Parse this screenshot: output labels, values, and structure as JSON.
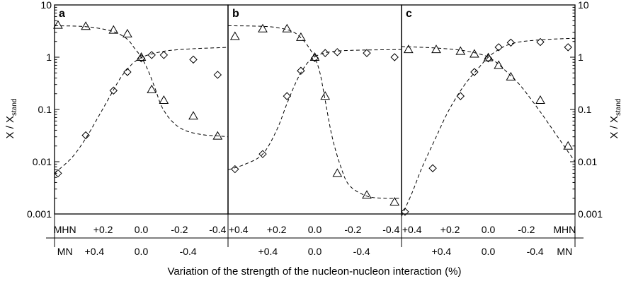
{
  "chart_data": {
    "type": "scatter",
    "y_axis": {
      "title_left": "X / X",
      "title_right": "X / X",
      "title_subscript": "stand",
      "scale": "log",
      "ylim": [
        0.001,
        10
      ],
      "ticks": [
        "0.001",
        "0.01",
        "0.1",
        "1",
        "10"
      ]
    },
    "xlabel": "Variation of the strength of the nucleon-nucleon interaction (%)",
    "panels": [
      {
        "letter": "a",
        "xlim": [
          0.5,
          -0.5
        ],
        "axis_row1": [
          "MHN",
          "+0.2",
          "0.0",
          "-0.2",
          "-0.4"
        ],
        "axis_row2": [
          "MN",
          "+0.4",
          "0.0",
          "-0.4"
        ],
        "series": [
          {
            "marker": "triangle",
            "x": [
              0.48,
              0.32,
              0.16,
              0.08,
              0.0,
              -0.06,
              -0.13,
              -0.3,
              -0.44
            ],
            "y": [
              4.1,
              3.9,
              3.3,
              2.8,
              1.0,
              0.24,
              0.15,
              0.075,
              0.031
            ]
          },
          {
            "marker": "diamond",
            "x": [
              0.48,
              0.32,
              0.16,
              0.08,
              0.0,
              -0.06,
              -0.13,
              -0.3,
              -0.44
            ],
            "y": [
              0.006,
              0.032,
              0.23,
              0.52,
              0.95,
              1.1,
              1.1,
              0.9,
              0.46
            ]
          }
        ],
        "fits": [
          {
            "x": [
              0.5,
              0.35,
              0.25,
              0.15,
              0.08,
              0.04,
              0.0,
              -0.04,
              -0.08,
              -0.12,
              -0.18,
              -0.25,
              -0.35,
              -0.45,
              -0.5
            ],
            "y": [
              4.0,
              3.9,
              3.6,
              3.0,
              2.2,
              1.5,
              1.0,
              0.55,
              0.25,
              0.11,
              0.058,
              0.04,
              0.033,
              0.031,
              0.03
            ]
          },
          {
            "x": [
              0.5,
              0.4,
              0.32,
              0.25,
              0.18,
              0.12,
              0.06,
              0.02,
              -0.02,
              -0.08,
              -0.15,
              -0.25,
              -0.35,
              -0.45,
              -0.5
            ],
            "y": [
              0.006,
              0.012,
              0.028,
              0.07,
              0.18,
              0.4,
              0.7,
              0.9,
              1.05,
              1.2,
              1.33,
              1.42,
              1.48,
              1.52,
              1.55
            ]
          }
        ]
      },
      {
        "letter": "b",
        "xlim": [
          0.5,
          -0.5
        ],
        "axis_row1": [
          "+0.4",
          "+0.2",
          "0.0",
          "-0.2",
          "-0.4"
        ],
        "axis_row2": [
          "+0.4",
          "0.0",
          "-0.4"
        ],
        "series": [
          {
            "marker": "triangle",
            "x": [
              0.46,
              0.3,
              0.16,
              0.08,
              0.0,
              -0.06,
              -0.13,
              -0.3,
              -0.46
            ],
            "y": [
              2.5,
              3.5,
              3.5,
              2.4,
              1.0,
              0.18,
              0.006,
              0.0023,
              0.0017
            ]
          },
          {
            "marker": "diamond",
            "x": [
              0.46,
              0.3,
              0.16,
              0.08,
              0.0,
              -0.06,
              -0.13,
              -0.3,
              -0.46
            ],
            "y": [
              0.0072,
              0.014,
              0.18,
              0.55,
              0.96,
              1.2,
              1.25,
              1.2,
              1.0
            ]
          }
        ],
        "fits": [
          {
            "x": [
              0.5,
              0.3,
              0.2,
              0.12,
              0.06,
              0.02,
              0.0,
              -0.03,
              -0.06,
              -0.1,
              -0.15,
              -0.2,
              -0.3,
              -0.4,
              -0.5
            ],
            "y": [
              4.0,
              3.9,
              3.6,
              3.0,
              2.0,
              1.3,
              1.0,
              0.5,
              0.15,
              0.03,
              0.008,
              0.0035,
              0.0022,
              0.002,
              0.002
            ]
          },
          {
            "x": [
              0.5,
              0.4,
              0.3,
              0.22,
              0.16,
              0.1,
              0.05,
              0.02,
              -0.02,
              -0.08,
              -0.2,
              -0.5
            ],
            "y": [
              0.007,
              0.009,
              0.014,
              0.04,
              0.13,
              0.38,
              0.72,
              0.9,
              1.1,
              1.25,
              1.35,
              1.4
            ]
          }
        ]
      },
      {
        "letter": "c",
        "xlim": [
          0.5,
          -0.5
        ],
        "axis_row1": [
          "+0.4",
          "+0.2",
          "0.0",
          "-0.2",
          "MHN"
        ],
        "axis_row2": [
          "+0.4",
          "0.0",
          "-0.4",
          "MN"
        ],
        "series": [
          {
            "marker": "triangle",
            "x": [
              0.46,
              0.3,
              0.16,
              0.08,
              0.0,
              -0.06,
              -0.13,
              -0.3,
              -0.46
            ],
            "y": [
              1.4,
              1.4,
              1.3,
              1.15,
              0.98,
              0.7,
              0.42,
              0.15,
              0.02
            ]
          },
          {
            "marker": "diamond",
            "x": [
              0.48,
              0.32,
              0.16,
              0.08,
              0.0,
              -0.06,
              -0.13,
              -0.3,
              -0.46
            ],
            "y": [
              0.0011,
              0.0075,
              0.18,
              0.52,
              0.95,
              1.55,
              1.9,
              1.95,
              1.55
            ]
          }
        ],
        "fits": [
          {
            "x": [
              0.5,
              0.3,
              0.15,
              0.05,
              0.0,
              -0.05,
              -0.1,
              -0.15,
              -0.2,
              -0.3,
              -0.4,
              -0.5
            ],
            "y": [
              1.6,
              1.5,
              1.35,
              1.15,
              1.0,
              0.78,
              0.55,
              0.38,
              0.25,
              0.09,
              0.03,
              0.01
            ]
          },
          {
            "x": [
              0.5,
              0.44,
              0.38,
              0.3,
              0.24,
              0.18,
              0.12,
              0.06,
              0.0,
              -0.06,
              -0.12,
              -0.2,
              -0.35,
              -0.5
            ],
            "y": [
              0.0009,
              0.0025,
              0.008,
              0.03,
              0.08,
              0.18,
              0.35,
              0.6,
              1.0,
              1.4,
              1.75,
              2.0,
              2.2,
              2.3
            ]
          }
        ]
      }
    ]
  }
}
